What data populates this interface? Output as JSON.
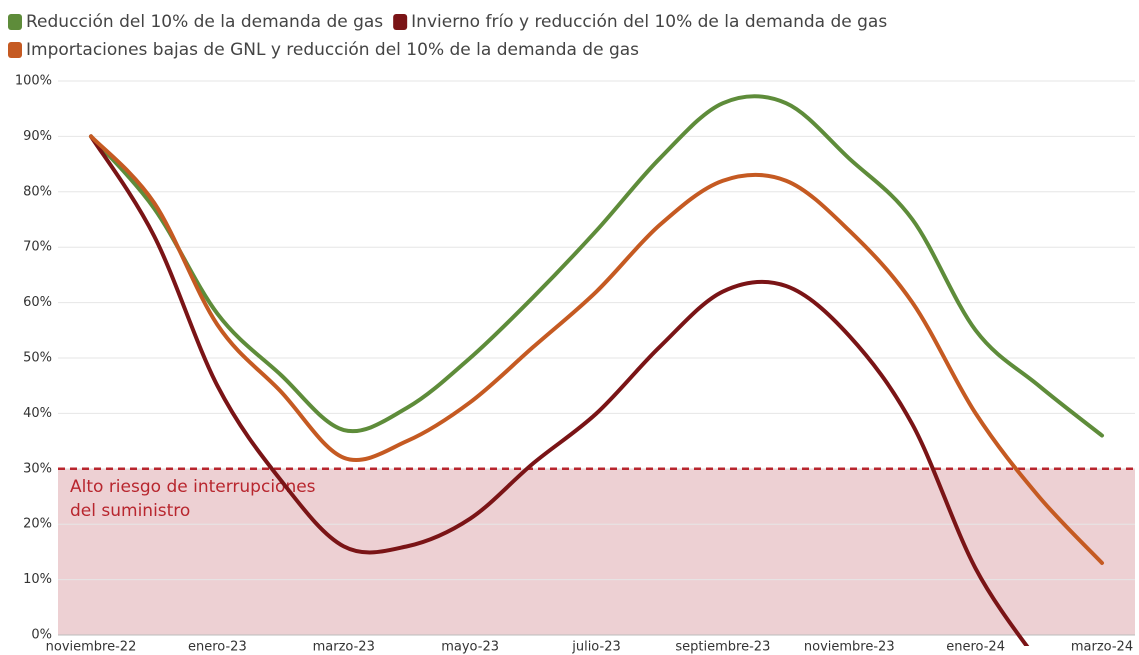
{
  "chart_data": {
    "type": "line",
    "categories": [
      "noviembre-22",
      null,
      "enero-23",
      null,
      "marzo-23",
      null,
      "mayo-23",
      null,
      "julio-23",
      null,
      "septiembre-23",
      null,
      "noviembre-23",
      null,
      "enero-24",
      null,
      "marzo-24"
    ],
    "series": [
      {
        "name": "Reducción del 10% de la demanda de gas",
        "color": "#5e8c3a",
        "values": [
          90,
          77,
          58,
          47,
          37,
          41,
          50,
          61,
          73,
          86,
          96,
          96,
          86,
          75,
          55,
          45,
          36
        ]
      },
      {
        "name": "Invierno frío y reducción del 10% de la demanda de gas",
        "color": "#7a1416",
        "values": [
          90,
          72,
          45,
          28,
          16,
          16,
          21,
          31,
          40,
          52,
          62,
          63,
          54,
          38,
          12,
          -5,
          null
        ]
      },
      {
        "name": "Importaciones bajas de GNL y reducción del 10% de la demanda de gas",
        "color": "#c55a22",
        "values": [
          90,
          78,
          56,
          44,
          32,
          35,
          42,
          52,
          62,
          74,
          82,
          82,
          73,
          60,
          40,
          25,
          13
        ]
      }
    ],
    "ylim": [
      0,
      100
    ],
    "yticks": [
      {
        "value": 0,
        "label": "0%"
      },
      {
        "value": 10,
        "label": "10%"
      },
      {
        "value": 20,
        "label": "20%"
      },
      {
        "value": 30,
        "label": "30%"
      },
      {
        "value": 40,
        "label": "40%"
      },
      {
        "value": 50,
        "label": "50%"
      },
      {
        "value": 60,
        "label": "60%"
      },
      {
        "value": 70,
        "label": "70%"
      },
      {
        "value": 80,
        "label": "80%"
      },
      {
        "value": 90,
        "label": "90%"
      },
      {
        "value": 100,
        "label": "100%"
      }
    ],
    "grid": true,
    "risk_zone": {
      "value": 30,
      "label": "Alto riesgo de interrupciones del suministro"
    }
  }
}
